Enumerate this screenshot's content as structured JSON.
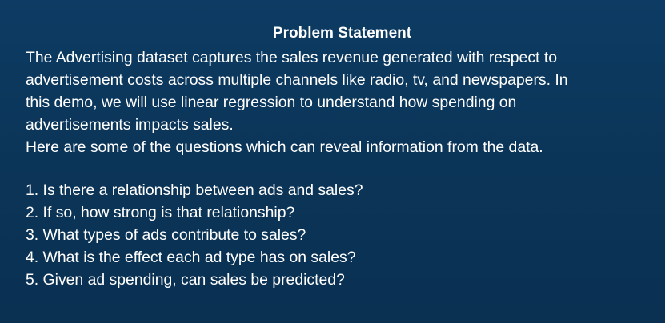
{
  "slide": {
    "title": "Problem Statement",
    "paragraph_lines": [
      "The Advertising dataset captures the sales revenue generated with respect to",
      "advertisement costs across multiple channels like radio, tv, and newspapers. In",
      "this demo, we will use linear regression to understand how spending on",
      "advertisements impacts sales.",
      "Here are some of the questions which can reveal information from the data."
    ],
    "questions": [
      "1. Is there a relationship between ads and sales?",
      "2. If so, how strong is that relationship?",
      "3. What types of ads contribute to sales?",
      "4. What is the effect each ad type has on sales?",
      "5. Given ad spending, can sales be predicted?"
    ]
  }
}
